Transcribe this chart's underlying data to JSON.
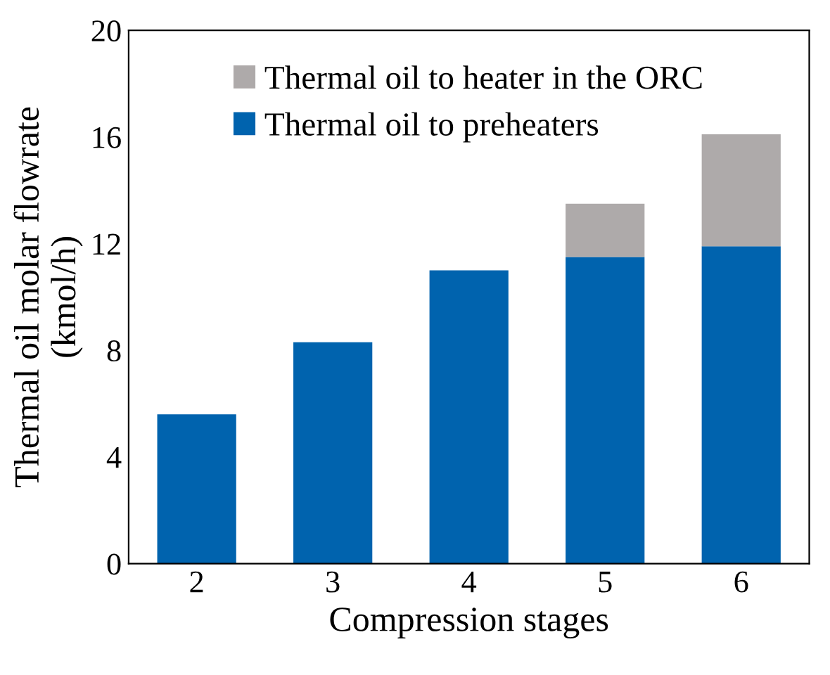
{
  "chart_data": {
    "type": "bar",
    "stacked": true,
    "xlabel": "Compression stages",
    "ylabel": "Thermal oil molar flowrate\n(kmol/h)",
    "categories": [
      "2",
      "3",
      "4",
      "5",
      "6"
    ],
    "series": [
      {
        "name": "Thermal oil to preheaters",
        "color": "#0063ae",
        "values": [
          5.6,
          8.3,
          11.0,
          11.5,
          11.9
        ]
      },
      {
        "name": "Thermal oil to heater in the ORC",
        "color": "#aeaaaa",
        "values": [
          null,
          null,
          null,
          2.0,
          4.2
        ]
      }
    ],
    "ylim": [
      0,
      20
    ],
    "yticks": [
      0,
      4,
      8,
      12,
      16,
      20
    ],
    "grid": false,
    "legend": "top"
  }
}
